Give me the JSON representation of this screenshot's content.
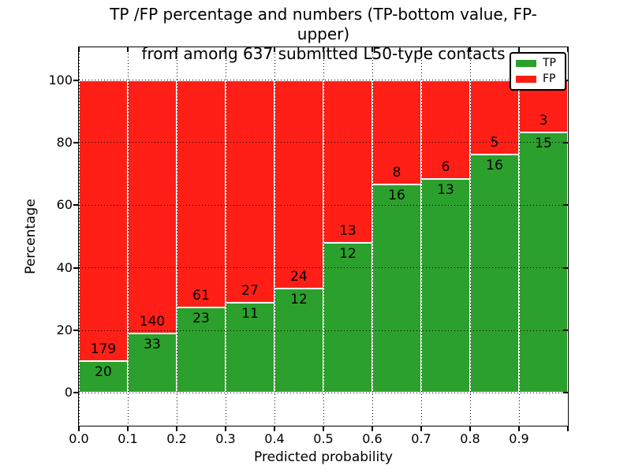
{
  "figure": {
    "background": "#ffffff"
  },
  "chart_data": {
    "type": "bar",
    "stacked": true,
    "title_line1": "TP /FP percentage and numbers (TP-bottom value, FP-upper)",
    "title_line2": "from among 637 submitted L50-type contacts",
    "xlabel": "Predicted probability",
    "ylabel": "Percentage",
    "total_contacts": 637,
    "bin_width": 0.1,
    "categories": [
      "0.0",
      "0.1",
      "0.2",
      "0.3",
      "0.4",
      "0.5",
      "0.6",
      "0.7",
      "0.8",
      "0.9"
    ],
    "series": [
      {
        "name": "TP",
        "color": "#2CA02C",
        "counts": [
          20,
          33,
          23,
          11,
          12,
          12,
          16,
          13,
          16,
          15
        ]
      },
      {
        "name": "FP",
        "color": "#FF1F16",
        "counts": [
          179,
          140,
          61,
          27,
          24,
          13,
          8,
          6,
          5,
          3
        ]
      }
    ],
    "tp_percent": [
      10.05,
      19.08,
      27.38,
      28.95,
      33.33,
      48.0,
      66.67,
      68.42,
      76.19,
      83.33
    ],
    "bar_total_height_percent": 100,
    "xticks": [
      "0.0",
      "0.1",
      "0.2",
      "0.3",
      "0.4",
      "0.5",
      "0.6",
      "0.7",
      "0.8",
      "0.9"
    ],
    "yticks": [
      0,
      20,
      40,
      60,
      80,
      100
    ],
    "xlim": [
      0.0,
      1.0
    ],
    "ylim": [
      -10.5,
      110.5
    ],
    "grid": "dotted",
    "legend": {
      "position": "upper-right",
      "entries": [
        "TP",
        "FP"
      ]
    }
  }
}
